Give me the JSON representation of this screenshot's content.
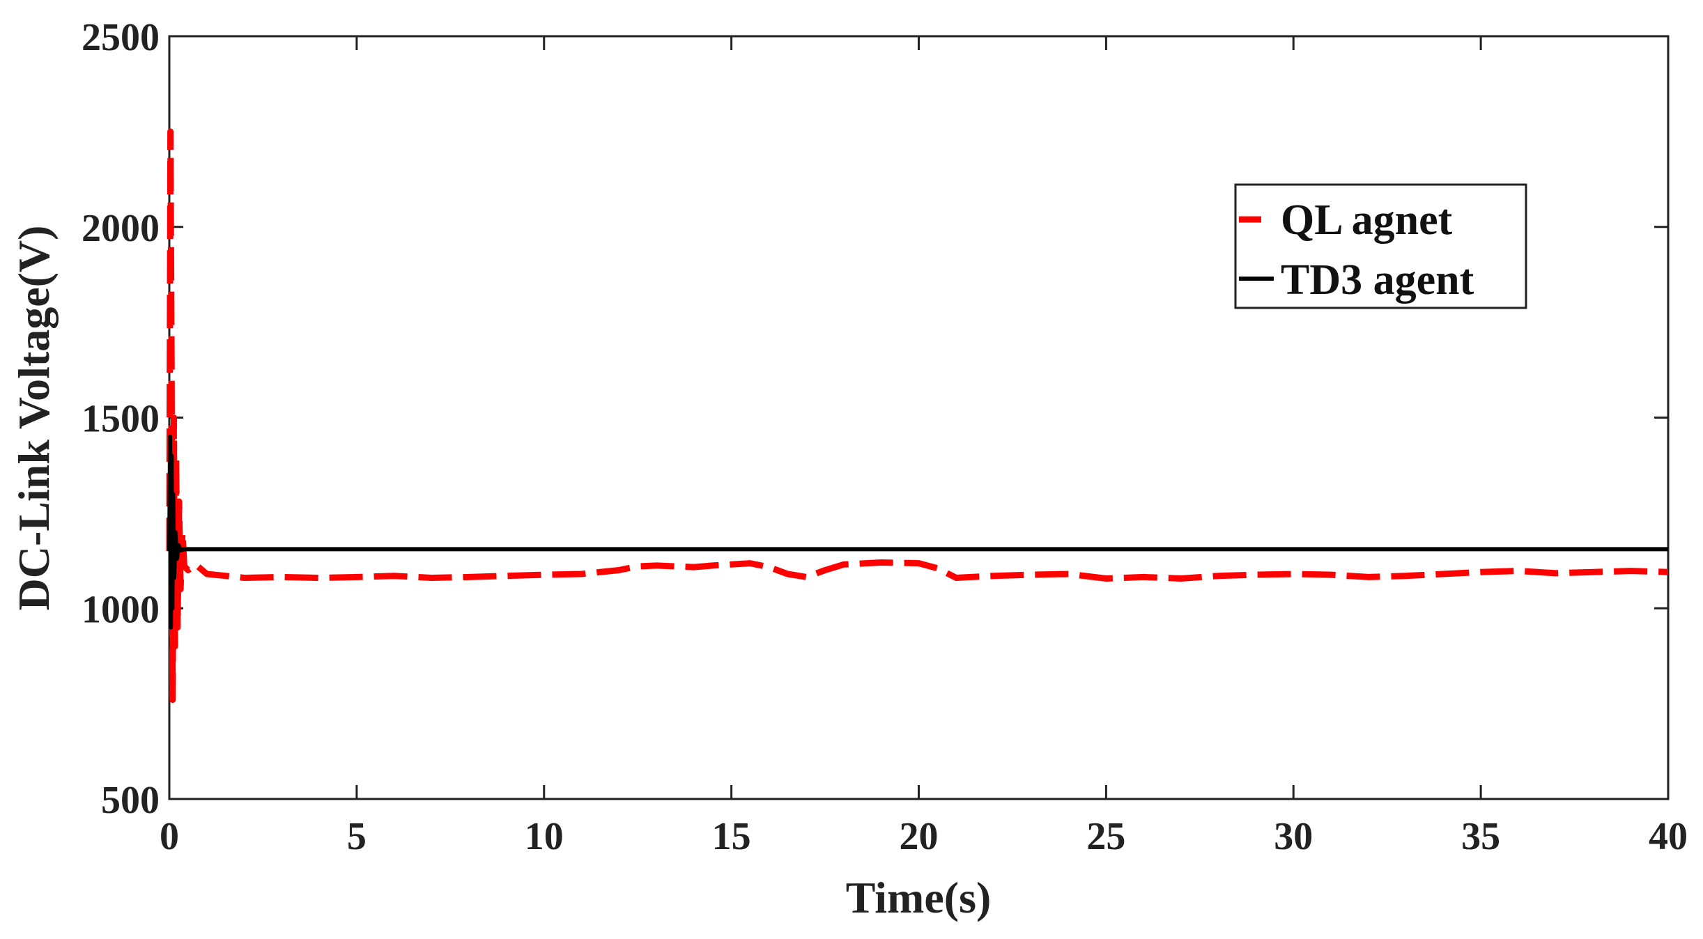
{
  "chart_data": {
    "type": "line",
    "title": "",
    "xlabel": "Time(s)",
    "ylabel": "DC-Link Voltage(V)",
    "xlim": [
      0,
      40
    ],
    "ylim": [
      500,
      2500
    ],
    "xticks": [
      0,
      5,
      10,
      15,
      20,
      25,
      30,
      35,
      40
    ],
    "yticks": [
      500,
      1000,
      1500,
      2000,
      2500
    ],
    "xtick_labels": [
      "0",
      "5",
      "10",
      "15",
      "20",
      "25",
      "30",
      "35",
      "40"
    ],
    "ytick_labels": [
      "500",
      "1000",
      "1500",
      "2000",
      "2500"
    ],
    "grid": false,
    "legend_position": "top-right",
    "series": [
      {
        "name": "QL agnet",
        "color": "#ff0000",
        "style": "dashed",
        "x": [
          0,
          0.03,
          0.06,
          0.09,
          0.12,
          0.15,
          0.18,
          0.22,
          0.26,
          0.3,
          0.35,
          0.4,
          0.5,
          0.7,
          1,
          1.5,
          2,
          3,
          4,
          5,
          6,
          7,
          8,
          9,
          10,
          11,
          12,
          12.5,
          13,
          13.5,
          14,
          14.5,
          15,
          15.5,
          16,
          16.5,
          17,
          17.5,
          18,
          19,
          20,
          20.5,
          21,
          22,
          23,
          24,
          25,
          26,
          27,
          28,
          29,
          30,
          31,
          32,
          33,
          34,
          35,
          36,
          37,
          38,
          39,
          40
        ],
        "values": [
          1150,
          2250,
          1650,
          760,
          1500,
          900,
          1400,
          950,
          1280,
          1050,
          1200,
          1110,
          1100,
          1115,
          1090,
          1085,
          1080,
          1082,
          1080,
          1082,
          1085,
          1080,
          1082,
          1085,
          1088,
          1090,
          1100,
          1110,
          1112,
          1110,
          1108,
          1112,
          1115,
          1118,
          1108,
          1090,
          1082,
          1100,
          1115,
          1120,
          1118,
          1105,
          1080,
          1085,
          1088,
          1090,
          1078,
          1082,
          1078,
          1085,
          1088,
          1090,
          1088,
          1082,
          1085,
          1090,
          1095,
          1098,
          1092,
          1095,
          1098,
          1095
        ]
      },
      {
        "name": "TD3 agent",
        "color": "#000000",
        "style": "solid",
        "x": [
          0,
          0.02,
          0.04,
          0.06,
          0.08,
          0.1,
          0.13,
          0.16,
          0.2,
          0.25,
          0.3,
          0.4,
          1,
          40
        ],
        "values": [
          1150,
          1450,
          950,
          1400,
          1000,
          1300,
          1080,
          1200,
          1130,
          1165,
          1152,
          1155,
          1155,
          1155
        ]
      }
    ]
  }
}
